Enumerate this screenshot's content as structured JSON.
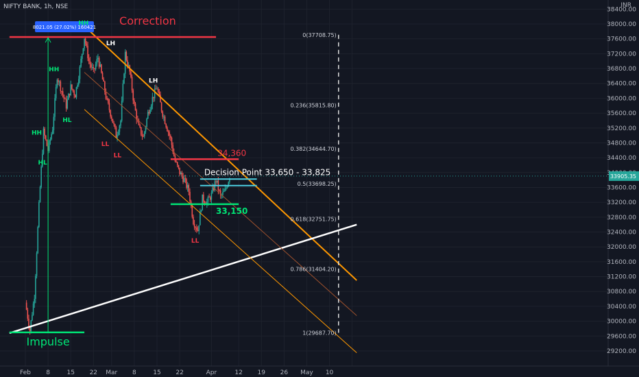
{
  "chart_data": {
    "type": "candlestick",
    "title": "NIFTY BANK, 1h, NSE",
    "currency": "INR",
    "colors": {
      "up": "#26a69a",
      "down": "#ef5350",
      "background": "#131722"
    },
    "xaxis": {
      "ticks": [
        {
          "label": "Feb",
          "t": 0
        },
        {
          "label": "8",
          "t": 5
        },
        {
          "label": "15",
          "t": 10
        },
        {
          "label": "22",
          "t": 15
        },
        {
          "label": "Mar",
          "t": 19
        },
        {
          "label": "8",
          "t": 24
        },
        {
          "label": "15",
          "t": 29
        },
        {
          "label": "22",
          "t": 34
        },
        {
          "label": "Apr",
          "t": 41
        },
        {
          "label": "12",
          "t": 47
        },
        {
          "label": "19",
          "t": 52
        },
        {
          "label": "26",
          "t": 57
        },
        {
          "label": "May",
          "t": 62
        },
        {
          "label": "10",
          "t": 67
        },
        {
          "label": "",
          "t": 72
        }
      ]
    },
    "yaxis": {
      "ylim": [
        29000,
        38500
      ],
      "ticks": [
        38400,
        38000,
        37600,
        37200,
        36800,
        36400,
        36000,
        35600,
        35200,
        34800,
        34400,
        34000,
        33600,
        33200,
        32800,
        32400,
        32000,
        31600,
        31200,
        30800,
        30400,
        30000,
        29600,
        29200
      ],
      "tick_labels": [
        "38400.00",
        "38000.00",
        "37600.00",
        "37200.00",
        "36800.00",
        "36400.00",
        "36000.00",
        "35600.00",
        "35200.00",
        "34800.00",
        "34400.00",
        "34000.00",
        "33600.00",
        "33200.00",
        "32800.00",
        "32400.00",
        "32000.00",
        "31600.00",
        "31200.00",
        "30800.00",
        "30400.00",
        "30000.00",
        "29600.00",
        "29200.00"
      ]
    },
    "last_price": {
      "value": 33905.35,
      "label": "33905.35"
    },
    "price_path": [
      {
        "t": 0,
        "y": 30500
      },
      {
        "t": 1,
        "y": 29750
      },
      {
        "t": 2,
        "y": 30700
      },
      {
        "t": 3,
        "y": 33100
      },
      {
        "t": 4,
        "y": 35100
      },
      {
        "t": 5,
        "y": 34600
      },
      {
        "t": 6,
        "y": 35200
      },
      {
        "t": 7,
        "y": 36600
      },
      {
        "t": 8,
        "y": 36200
      },
      {
        "t": 9,
        "y": 35800
      },
      {
        "t": 10,
        "y": 36300
      },
      {
        "t": 11,
        "y": 36100
      },
      {
        "t": 12,
        "y": 36800
      },
      {
        "t": 13,
        "y": 37650
      },
      {
        "t": 14,
        "y": 37000
      },
      {
        "t": 15,
        "y": 36700
      },
      {
        "t": 16,
        "y": 37100
      },
      {
        "t": 17,
        "y": 36500
      },
      {
        "t": 18,
        "y": 35900
      },
      {
        "t": 19,
        "y": 35500
      },
      {
        "t": 20,
        "y": 35000
      },
      {
        "t": 21,
        "y": 35400
      },
      {
        "t": 22,
        "y": 37200
      },
      {
        "t": 23,
        "y": 36700
      },
      {
        "t": 24,
        "y": 35800
      },
      {
        "t": 25,
        "y": 35200
      },
      {
        "t": 26,
        "y": 34950
      },
      {
        "t": 27,
        "y": 35600
      },
      {
        "t": 28,
        "y": 36000
      },
      {
        "t": 29,
        "y": 36300
      },
      {
        "t": 30,
        "y": 35700
      },
      {
        "t": 31,
        "y": 35300
      },
      {
        "t": 32,
        "y": 34900
      },
      {
        "t": 33,
        "y": 34300
      },
      {
        "t": 34,
        "y": 34000
      },
      {
        "t": 35,
        "y": 33800
      },
      {
        "t": 36,
        "y": 33500
      },
      {
        "t": 37,
        "y": 32700
      },
      {
        "t": 38,
        "y": 32450
      },
      {
        "t": 39,
        "y": 33300
      },
      {
        "t": 40,
        "y": 33200
      },
      {
        "t": 41,
        "y": 33400
      },
      {
        "t": 42,
        "y": 33800
      },
      {
        "t": 43,
        "y": 33350
      },
      {
        "t": 44,
        "y": 33500
      },
      {
        "t": 45,
        "y": 33905
      }
    ],
    "horizontal_levels": [
      {
        "name": "correction-line",
        "y": 37650,
        "t1": -3.5,
        "t2": 42,
        "color": "#f23645",
        "label": "Correction"
      },
      {
        "name": "level-34360",
        "y": 34360,
        "t1": 32,
        "t2": 47,
        "color": "#f23645",
        "label": "34,360"
      },
      {
        "name": "level-33150",
        "y": 33150,
        "t1": 32,
        "t2": 47,
        "color": "#00e676",
        "label": "33,150"
      },
      {
        "name": "decision-upper",
        "y": 33825,
        "t1": 38.5,
        "t2": 51,
        "color": "#4dd0e1"
      },
      {
        "name": "decision-lower",
        "y": 33650,
        "t1": 38.5,
        "t2": 51,
        "color": "#4dd0e1"
      },
      {
        "name": "impulse-base",
        "y": 29700,
        "t1": -3.5,
        "t2": 13,
        "color": "#00e676",
        "label": "Impulse"
      }
    ],
    "decision_label": "Decision Point 33,650 - 33,825",
    "trendlines": [
      {
        "name": "orange-downtrend",
        "t1": 12.5,
        "y1": 38000,
        "t2": 73,
        "y2": 31100,
        "color": "#ff9800",
        "width": 2
      },
      {
        "name": "white-uptrend",
        "t1": -3.5,
        "y1": 29680,
        "t2": 73,
        "y2": 32600,
        "color": "#ffffff",
        "width": 2.5
      },
      {
        "name": "channel-middle",
        "t1": 13,
        "y1": 36700,
        "t2": 73,
        "y2": 30150,
        "color": "#a0522d",
        "width": 1
      },
      {
        "name": "channel-lower",
        "t1": 13,
        "y1": 35700,
        "t2": 73,
        "y2": 29150,
        "color": "#ff9800",
        "width": 1
      }
    ],
    "impulse_measure": {
      "t": 5,
      "y1": 29700,
      "y2": 37650,
      "color": "#00e676",
      "label": "8021.05 (27.02%) 160421"
    },
    "fibonacci": {
      "t_line": 69,
      "levels": [
        {
          "y": 37708.75,
          "label": "0(37708.75)"
        },
        {
          "y": 35815.8,
          "label": "0.236(35815.80)"
        },
        {
          "y": 34644.7,
          "label": "0.382(34644.70)"
        },
        {
          "y": 33698.25,
          "label": "0.5(33698.25)"
        },
        {
          "y": 32751.75,
          "label": "0.618(32751.75)"
        },
        {
          "y": 31404.2,
          "label": "0.786(31404.20)"
        },
        {
          "y": 29687.7,
          "label": "1(29687.70)"
        }
      ]
    },
    "swing_labels": [
      {
        "text": "HH",
        "t": 2.5,
        "y": 34950,
        "color": "#00e676",
        "pos": "above"
      },
      {
        "text": "HL",
        "t": 3.8,
        "y": 34400,
        "color": "#00e676",
        "pos": "below"
      },
      {
        "text": "HH",
        "t": 6.3,
        "y": 36650,
        "color": "#00e676",
        "pos": "above"
      },
      {
        "text": "HL",
        "t": 9.2,
        "y": 35550,
        "color": "#00e676",
        "pos": "below"
      },
      {
        "text": "HH",
        "t": 12.8,
        "y": 37900,
        "color": "#00e676",
        "pos": "above"
      },
      {
        "text": "LH",
        "t": 18.8,
        "y": 37350,
        "color": "#ffffff",
        "pos": "above"
      },
      {
        "text": "LL",
        "t": 17.6,
        "y": 34900,
        "color": "#f23645",
        "pos": "below"
      },
      {
        "text": "LL",
        "t": 20.3,
        "y": 34600,
        "color": "#f23645",
        "pos": "below"
      },
      {
        "text": "LH",
        "t": 28.2,
        "y": 36350,
        "color": "#ffffff",
        "pos": "above"
      },
      {
        "text": "LL",
        "t": 37.4,
        "y": 32300,
        "color": "#f23645",
        "pos": "below"
      }
    ]
  }
}
